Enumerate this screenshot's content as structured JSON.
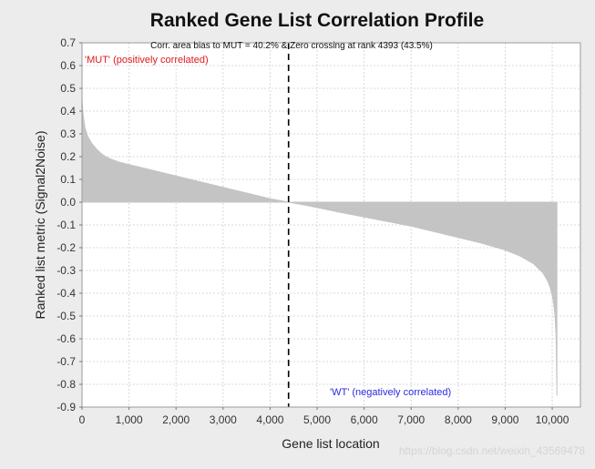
{
  "chart_data": {
    "type": "area",
    "title": "Ranked Gene List Correlation Profile",
    "xlabel": "Gene list location",
    "ylabel": "Ranked list metric (Signal2Noise)",
    "xlim": [
      0,
      10600
    ],
    "ylim": [
      -0.9,
      0.7
    ],
    "x_ticks": [
      0,
      1000,
      2000,
      3000,
      4000,
      5000,
      6000,
      7000,
      8000,
      9000,
      10000
    ],
    "x_tick_labels": [
      "0",
      "1,000",
      "2,000",
      "3,000",
      "4,000",
      "5,000",
      "6,000",
      "7,000",
      "8,000",
      "9,000",
      "10,000"
    ],
    "y_ticks": [
      0.7,
      0.6,
      0.5,
      0.4,
      0.3,
      0.2,
      0.1,
      0.0,
      -0.1,
      -0.2,
      -0.3,
      -0.4,
      -0.5,
      -0.6,
      -0.7,
      -0.8,
      -0.9
    ],
    "y_tick_labels": [
      "0.7",
      "0.6",
      "0.5",
      "0.4",
      "0.3",
      "0.2",
      "0.1",
      "0.0",
      "-0.1",
      "-0.2",
      "-0.3",
      "-0.4",
      "-0.5",
      "-0.6",
      "-0.7",
      "-0.8",
      "-0.9"
    ],
    "grid": true,
    "fill_color": "#c4c4c4",
    "series": [
      {
        "x": [
          0,
          20,
          60,
          120,
          200,
          300,
          400,
          500,
          600,
          800,
          1000,
          1500,
          2000,
          2500,
          3000,
          3500,
          4000,
          4393,
          4800,
          5500,
          6000,
          6500,
          7000,
          7500,
          8000,
          8500,
          9000,
          9300,
          9600,
          9800,
          9900,
          9950,
          10000,
          10020,
          10040,
          10060,
          10080,
          10090,
          10100
        ],
        "values": [
          0.45,
          0.39,
          0.33,
          0.29,
          0.26,
          0.235,
          0.215,
          0.2,
          0.19,
          0.175,
          0.165,
          0.14,
          0.115,
          0.09,
          0.065,
          0.04,
          0.015,
          0.0,
          -0.015,
          -0.045,
          -0.065,
          -0.085,
          -0.105,
          -0.13,
          -0.155,
          -0.18,
          -0.21,
          -0.235,
          -0.27,
          -0.31,
          -0.345,
          -0.37,
          -0.41,
          -0.43,
          -0.46,
          -0.5,
          -0.58,
          -0.68,
          -0.85
        ]
      }
    ],
    "zero_crossing": {
      "x": 4393
    },
    "annotations": {
      "top": "Corr. area bias to MUT = 40.2% & Zero crossing at rank 4393 (43.5%)",
      "positive": "'MUT' (positively correlated)",
      "negative": "'WT' (negatively correlated)"
    }
  },
  "watermark": "https://blog.csdn.net/weixin_43569478"
}
